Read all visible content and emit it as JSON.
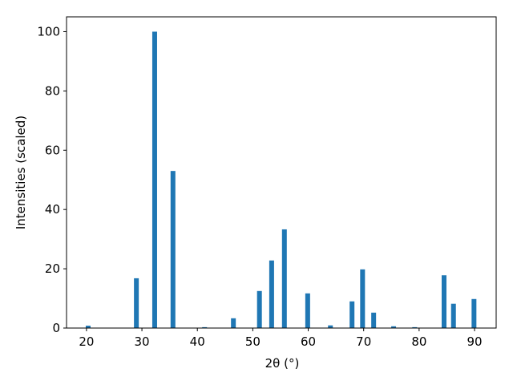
{
  "chart_data": {
    "type": "bar",
    "xlabel": "2θ (°)",
    "ylabel": "Intensities (scaled)",
    "color": "#1f77b4",
    "x": [
      20.3,
      29.0,
      32.3,
      35.6,
      41.3,
      46.5,
      51.2,
      53.4,
      55.7,
      59.9,
      64.0,
      67.9,
      69.8,
      71.8,
      75.4,
      79.2,
      84.5,
      86.2,
      89.9
    ],
    "values": [
      0.8,
      16.8,
      100,
      53,
      0.3,
      3.3,
      12.5,
      22.8,
      33.3,
      11.7,
      0.9,
      9,
      19.8,
      5.2,
      0.6,
      0.3,
      17.8,
      8.2,
      9.8
    ],
    "xlim": [
      16.4,
      93.9
    ],
    "ylim": [
      0,
      105
    ],
    "xticks": [
      20,
      30,
      40,
      50,
      60,
      70,
      80,
      90
    ],
    "yticks": [
      0,
      20,
      40,
      60,
      80,
      100
    ]
  }
}
